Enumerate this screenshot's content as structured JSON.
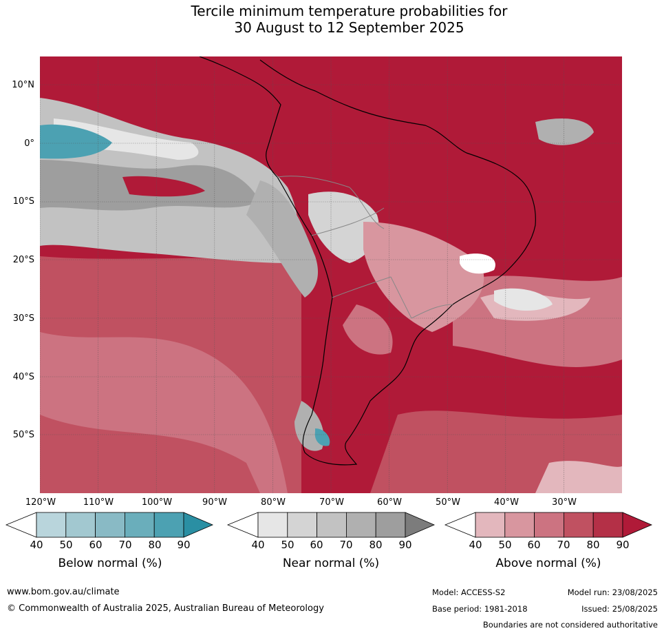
{
  "title_line1": "Tercile minimum temperature probabilities for",
  "title_line2": "30 August to 12 September 2025",
  "lat_labels": [
    "10°N",
    "0°",
    "10°S",
    "20°S",
    "30°S",
    "40°S",
    "50°S"
  ],
  "lon_labels": [
    "120°W",
    "110°W",
    "100°W",
    "90°W",
    "80°W",
    "70°W",
    "60°W",
    "50°W",
    "40°W",
    "30°W"
  ],
  "colorbars": [
    {
      "label": "Below normal (%)",
      "ticks": [
        "40",
        "50",
        "60",
        "70",
        "80",
        "90"
      ],
      "colors": [
        "#ffffff",
        "#b9d5dc",
        "#a2c8d0",
        "#89bac5",
        "#6aaebb",
        "#4ca1b2",
        "#2a8fa3"
      ]
    },
    {
      "label": "Near normal (%)",
      "ticks": [
        "40",
        "50",
        "60",
        "70",
        "80",
        "90"
      ],
      "colors": [
        "#ffffff",
        "#e6e6e6",
        "#d4d4d4",
        "#c2c2c2",
        "#b0b0b0",
        "#9e9e9e",
        "#7c7c7c"
      ]
    },
    {
      "label": "Above normal (%)",
      "ticks": [
        "40",
        "50",
        "60",
        "70",
        "80",
        "90"
      ],
      "colors": [
        "#ffffff",
        "#e3b7bd",
        "#d8969f",
        "#cc7381",
        "#c05161",
        "#b43047",
        "#b01a38"
      ]
    }
  ],
  "footer": {
    "website": "www.bom.gov.au/climate",
    "copyright": "© Commonwealth of Australia 2025, Australian Bureau of Meteorology",
    "model": "Model: ACCESS-S2",
    "model_run": "Model run: 23/08/2025",
    "base_period": "Base period: 1981-2018",
    "issued": "Issued: 25/08/2025",
    "disclaimer": "Boundaries are not considered authoritative"
  },
  "colors": {
    "above_dark": "#b01a38",
    "above_mid": "#c05161",
    "near_mid": "#b0b0b0",
    "below_dark": "#2a8fa3"
  }
}
